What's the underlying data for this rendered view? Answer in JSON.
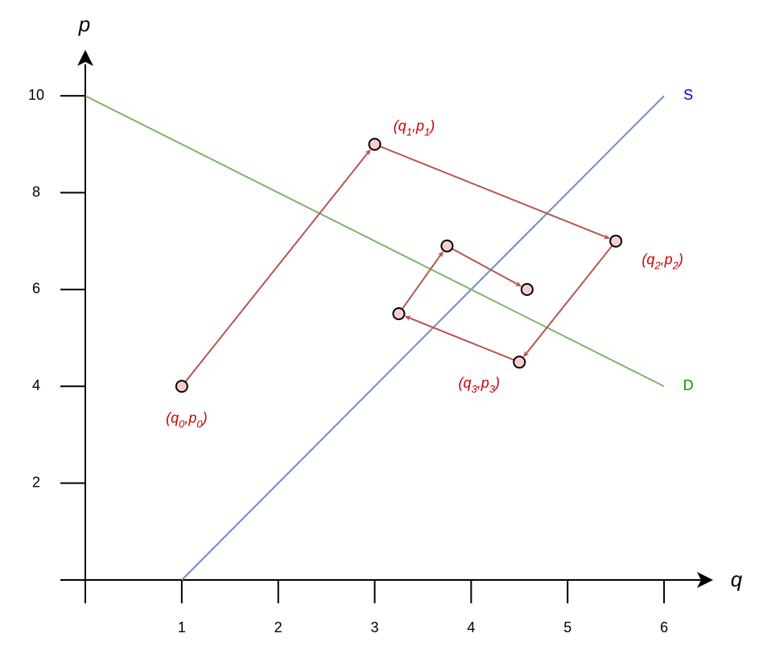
{
  "chart_data": {
    "type": "cobweb",
    "x_label": "q",
    "y_label": "p",
    "xlim": [
      0,
      6.5
    ],
    "ylim": [
      0,
      10.9
    ],
    "xticks": [
      1,
      2,
      3,
      4,
      5,
      6
    ],
    "yticks": [
      2,
      4,
      6,
      8,
      10
    ],
    "curves": [
      {
        "name": "S",
        "color": "#6c8ebf",
        "label_color": "#0000cc",
        "x": [
          1,
          6
        ],
        "values": [
          0,
          10
        ]
      },
      {
        "name": "D",
        "color": "#82b366",
        "label_color": "#009900",
        "x": [
          0,
          6
        ],
        "values": [
          10,
          4
        ]
      }
    ],
    "path": {
      "color": "#b85450",
      "label_color": "#cc0000",
      "x": [
        1,
        3,
        5.5,
        4.5,
        3.25,
        3.75,
        4.58
      ],
      "values": [
        4,
        9,
        7,
        4.5,
        5.5,
        6.9,
        6
      ],
      "labels": [
        [
          "(q",
          "0",
          ",p",
          "0",
          ")"
        ],
        [
          "(q",
          "1",
          ",p",
          "1",
          ")"
        ],
        [
          "(q",
          "2",
          ",p",
          "2",
          ")"
        ],
        [
          "(q",
          "3",
          ",p",
          "3",
          ")"
        ],
        null,
        null,
        null
      ]
    }
  }
}
